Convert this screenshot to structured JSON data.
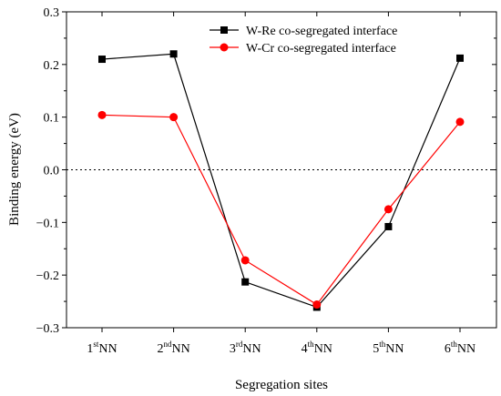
{
  "chart_data": {
    "type": "line",
    "categories": [
      {
        "base": "1",
        "sup": "st",
        "suffix": "NN"
      },
      {
        "base": "2",
        "sup": "nd",
        "suffix": "NN"
      },
      {
        "base": "3",
        "sup": "rd",
        "suffix": "NN"
      },
      {
        "base": "4",
        "sup": "th",
        "suffix": "NN"
      },
      {
        "base": "5",
        "sup": "th",
        "suffix": "NN"
      },
      {
        "base": "6",
        "sup": "th",
        "suffix": "NN"
      }
    ],
    "series": [
      {
        "name": "W-Re co-segregated interface",
        "color": "#000000",
        "marker": "square",
        "values": [
          0.21,
          0.22,
          -0.213,
          -0.261,
          -0.108,
          0.212
        ]
      },
      {
        "name": "W-Cr co-segregated interface",
        "color": "#ff0000",
        "marker": "circle",
        "values": [
          0.104,
          0.1,
          -0.172,
          -0.256,
          -0.075,
          0.091
        ]
      }
    ],
    "xlabel": "Segregation sites",
    "ylabel": "Binding energy (eV)",
    "ylim": [
      -0.3,
      0.3
    ],
    "yticks": [
      {
        "value": -0.3,
        "label": "−0.3"
      },
      {
        "value": -0.2,
        "label": "−0.2"
      },
      {
        "value": -0.1,
        "label": "−0.1"
      },
      {
        "value": 0.0,
        "label": "0.0"
      },
      {
        "value": 0.1,
        "label": "0.1"
      },
      {
        "value": 0.2,
        "label": "0.2"
      },
      {
        "value": 0.3,
        "label": "0.3"
      }
    ],
    "reference_line": {
      "value": 0.0,
      "style": "dotted"
    },
    "grid": false,
    "legend": "top-right"
  }
}
